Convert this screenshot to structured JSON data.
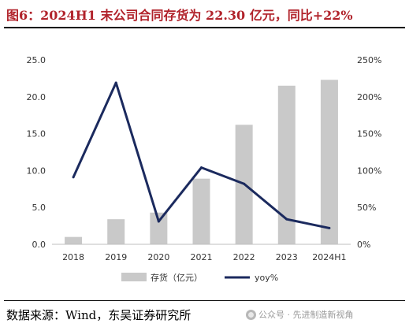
{
  "figure": {
    "title": "图6：2024H1 末公司合同存货为 22.30 亿元，同比+22%",
    "source": "数据来源：Wind，东吴证券研究所",
    "watermark": "公众号 · 先进制造新视角"
  },
  "chart_data": {
    "type": "bar",
    "categories": [
      "2018",
      "2019",
      "2020",
      "2021",
      "2022",
      "2023",
      "2024H1"
    ],
    "series": [
      {
        "name": "存货（亿元）",
        "type": "bar",
        "axis": "left",
        "color": "#c9c9c9",
        "values": [
          1.0,
          3.4,
          4.3,
          8.9,
          16.2,
          21.5,
          22.3
        ]
      },
      {
        "name": "yoy%",
        "type": "line",
        "axis": "right",
        "color": "#1b2a5e",
        "values": [
          91,
          219,
          31,
          104,
          82,
          34,
          22
        ]
      }
    ],
    "left_axis": {
      "min": 0,
      "max": 25,
      "ticks": [
        "0.0",
        "5.0",
        "10.0",
        "15.0",
        "20.0",
        "25.0"
      ]
    },
    "right_axis": {
      "min": 0,
      "max": 250,
      "ticks": [
        "0%",
        "50%",
        "100%",
        "150%",
        "200%",
        "250%"
      ]
    },
    "legend_position": "bottom"
  }
}
